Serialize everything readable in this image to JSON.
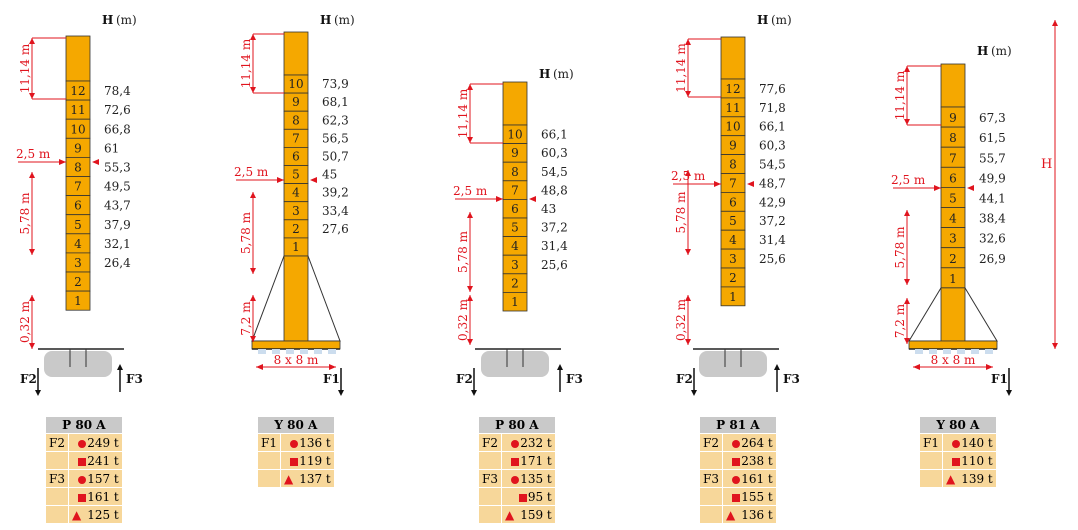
{
  "towers": [
    {
      "id": "t1",
      "height_label": "H",
      "height_unit": "(m)",
      "top_dim": "11,14 m",
      "mid_dim": "5,78 m",
      "base_dim": "0,32 m",
      "side_dim": "2,5 m",
      "levels": [
        "78,4",
        "72,6",
        "66,8",
        "61",
        "55,3",
        "49,5",
        "43,7",
        "37,9",
        "32,1",
        "26,4"
      ],
      "sections": [
        "12",
        "11",
        "10",
        "9",
        "8",
        "7",
        "6",
        "5",
        "4",
        "3",
        "2",
        "1"
      ],
      "forces": [
        "F2",
        "F3"
      ],
      "table": {
        "title": "P 80 A",
        "rows": [
          {
            "label": "F2",
            "icon": "dot",
            "value": "249 t"
          },
          {
            "label": "",
            "icon": "square",
            "value": "241 t"
          },
          {
            "label": "F3",
            "icon": "dot",
            "value": "157 t"
          },
          {
            "label": "",
            "icon": "square",
            "value": "161 t"
          },
          {
            "label": "",
            "icon": "hat",
            "value": "125 t"
          }
        ]
      }
    },
    {
      "id": "t2",
      "height_label": "H",
      "height_unit": "(m)",
      "top_dim": "11,14 m",
      "mid_dim": "5,78 m",
      "base_dim": "7,2 m",
      "side_dim": "2,5 m",
      "levels": [
        "73,9",
        "68,1",
        "62,3",
        "56,5",
        "50,7",
        "45",
        "39,2",
        "33,4",
        "27,6"
      ],
      "sections": [
        "10",
        "9",
        "8",
        "7",
        "6",
        "5",
        "4",
        "3",
        "2",
        "1"
      ],
      "base_label": "8 x 8 m",
      "forces": [
        "F1"
      ],
      "table": {
        "title": "Y 80 A",
        "rows": [
          {
            "label": "F1",
            "icon": "dot",
            "value": "136 t"
          },
          {
            "label": "",
            "icon": "square",
            "value": "119 t"
          },
          {
            "label": "",
            "icon": "hat",
            "value": "137 t"
          }
        ]
      }
    },
    {
      "id": "t3",
      "height_label": "H",
      "height_unit": "(m)",
      "top_dim": "11,14 m",
      "mid_dim": "5,78 m",
      "base_dim": "0,32 m",
      "side_dim": "2,5 m",
      "levels": [
        "66,1",
        "60,3",
        "54,5",
        "48,8",
        "43",
        "37,2",
        "31,4",
        "25,6"
      ],
      "sections": [
        "10",
        "9",
        "8",
        "7",
        "6",
        "5",
        "4",
        "3",
        "2",
        "1"
      ],
      "forces": [
        "F2",
        "F3"
      ],
      "table": {
        "title": "P 80 A",
        "rows": [
          {
            "label": "F2",
            "icon": "dot",
            "value": "232 t"
          },
          {
            "label": "",
            "icon": "square",
            "value": "171 t"
          },
          {
            "label": "F3",
            "icon": "dot",
            "value": "135 t"
          },
          {
            "label": "",
            "icon": "square",
            "value": "95 t"
          },
          {
            "label": "",
            "icon": "hat",
            "value": "159 t"
          }
        ]
      }
    },
    {
      "id": "t4",
      "height_label": "H",
      "height_unit": "(m)",
      "top_dim": "11,14 m",
      "mid_dim": "5,78 m",
      "base_dim": "0,32 m",
      "side_dim": "2,5 m",
      "levels": [
        "77,6",
        "71,8",
        "66,1",
        "60,3",
        "54,5",
        "48,7",
        "42,9",
        "37,2",
        "31,4",
        "25,6"
      ],
      "sections": [
        "12",
        "11",
        "10",
        "9",
        "8",
        "7",
        "6",
        "5",
        "4",
        "3",
        "2",
        "1"
      ],
      "forces": [
        "F2",
        "F3"
      ],
      "table": {
        "title": "P 81 A",
        "rows": [
          {
            "label": "F2",
            "icon": "dot",
            "value": "264 t"
          },
          {
            "label": "",
            "icon": "square",
            "value": "238 t"
          },
          {
            "label": "F3",
            "icon": "dot",
            "value": "161 t"
          },
          {
            "label": "",
            "icon": "square",
            "value": "155 t"
          },
          {
            "label": "",
            "icon": "hat",
            "value": "136 t"
          }
        ]
      }
    },
    {
      "id": "t5",
      "height_label": "H",
      "height_unit": "(m)",
      "top_dim": "11,14 m",
      "mid_dim": "5,78 m",
      "base_dim": "7,2 m",
      "side_dim": "2,5 m",
      "levels": [
        "67,3",
        "61,5",
        "55,7",
        "49,9",
        "44,1",
        "38,4",
        "32,6",
        "26,9"
      ],
      "sections": [
        "9",
        "8",
        "7",
        "6",
        "5",
        "4",
        "3",
        "2",
        "1"
      ],
      "base_label": "8 x 8 m",
      "overall_height_label": "H",
      "forces": [
        "F1"
      ],
      "table": {
        "title": "Y 80 A",
        "rows": [
          {
            "label": "F1",
            "icon": "dot",
            "value": "140 t"
          },
          {
            "label": "",
            "icon": "square",
            "value": "110 t"
          },
          {
            "label": "",
            "icon": "hat",
            "value": "139 t"
          }
        ]
      }
    }
  ],
  "colors": {
    "segment": "#f5a800",
    "dim": "#e0141e",
    "table": "#f7d79a",
    "header": "#c9c9c9",
    "ground": "#c9c9c9"
  }
}
